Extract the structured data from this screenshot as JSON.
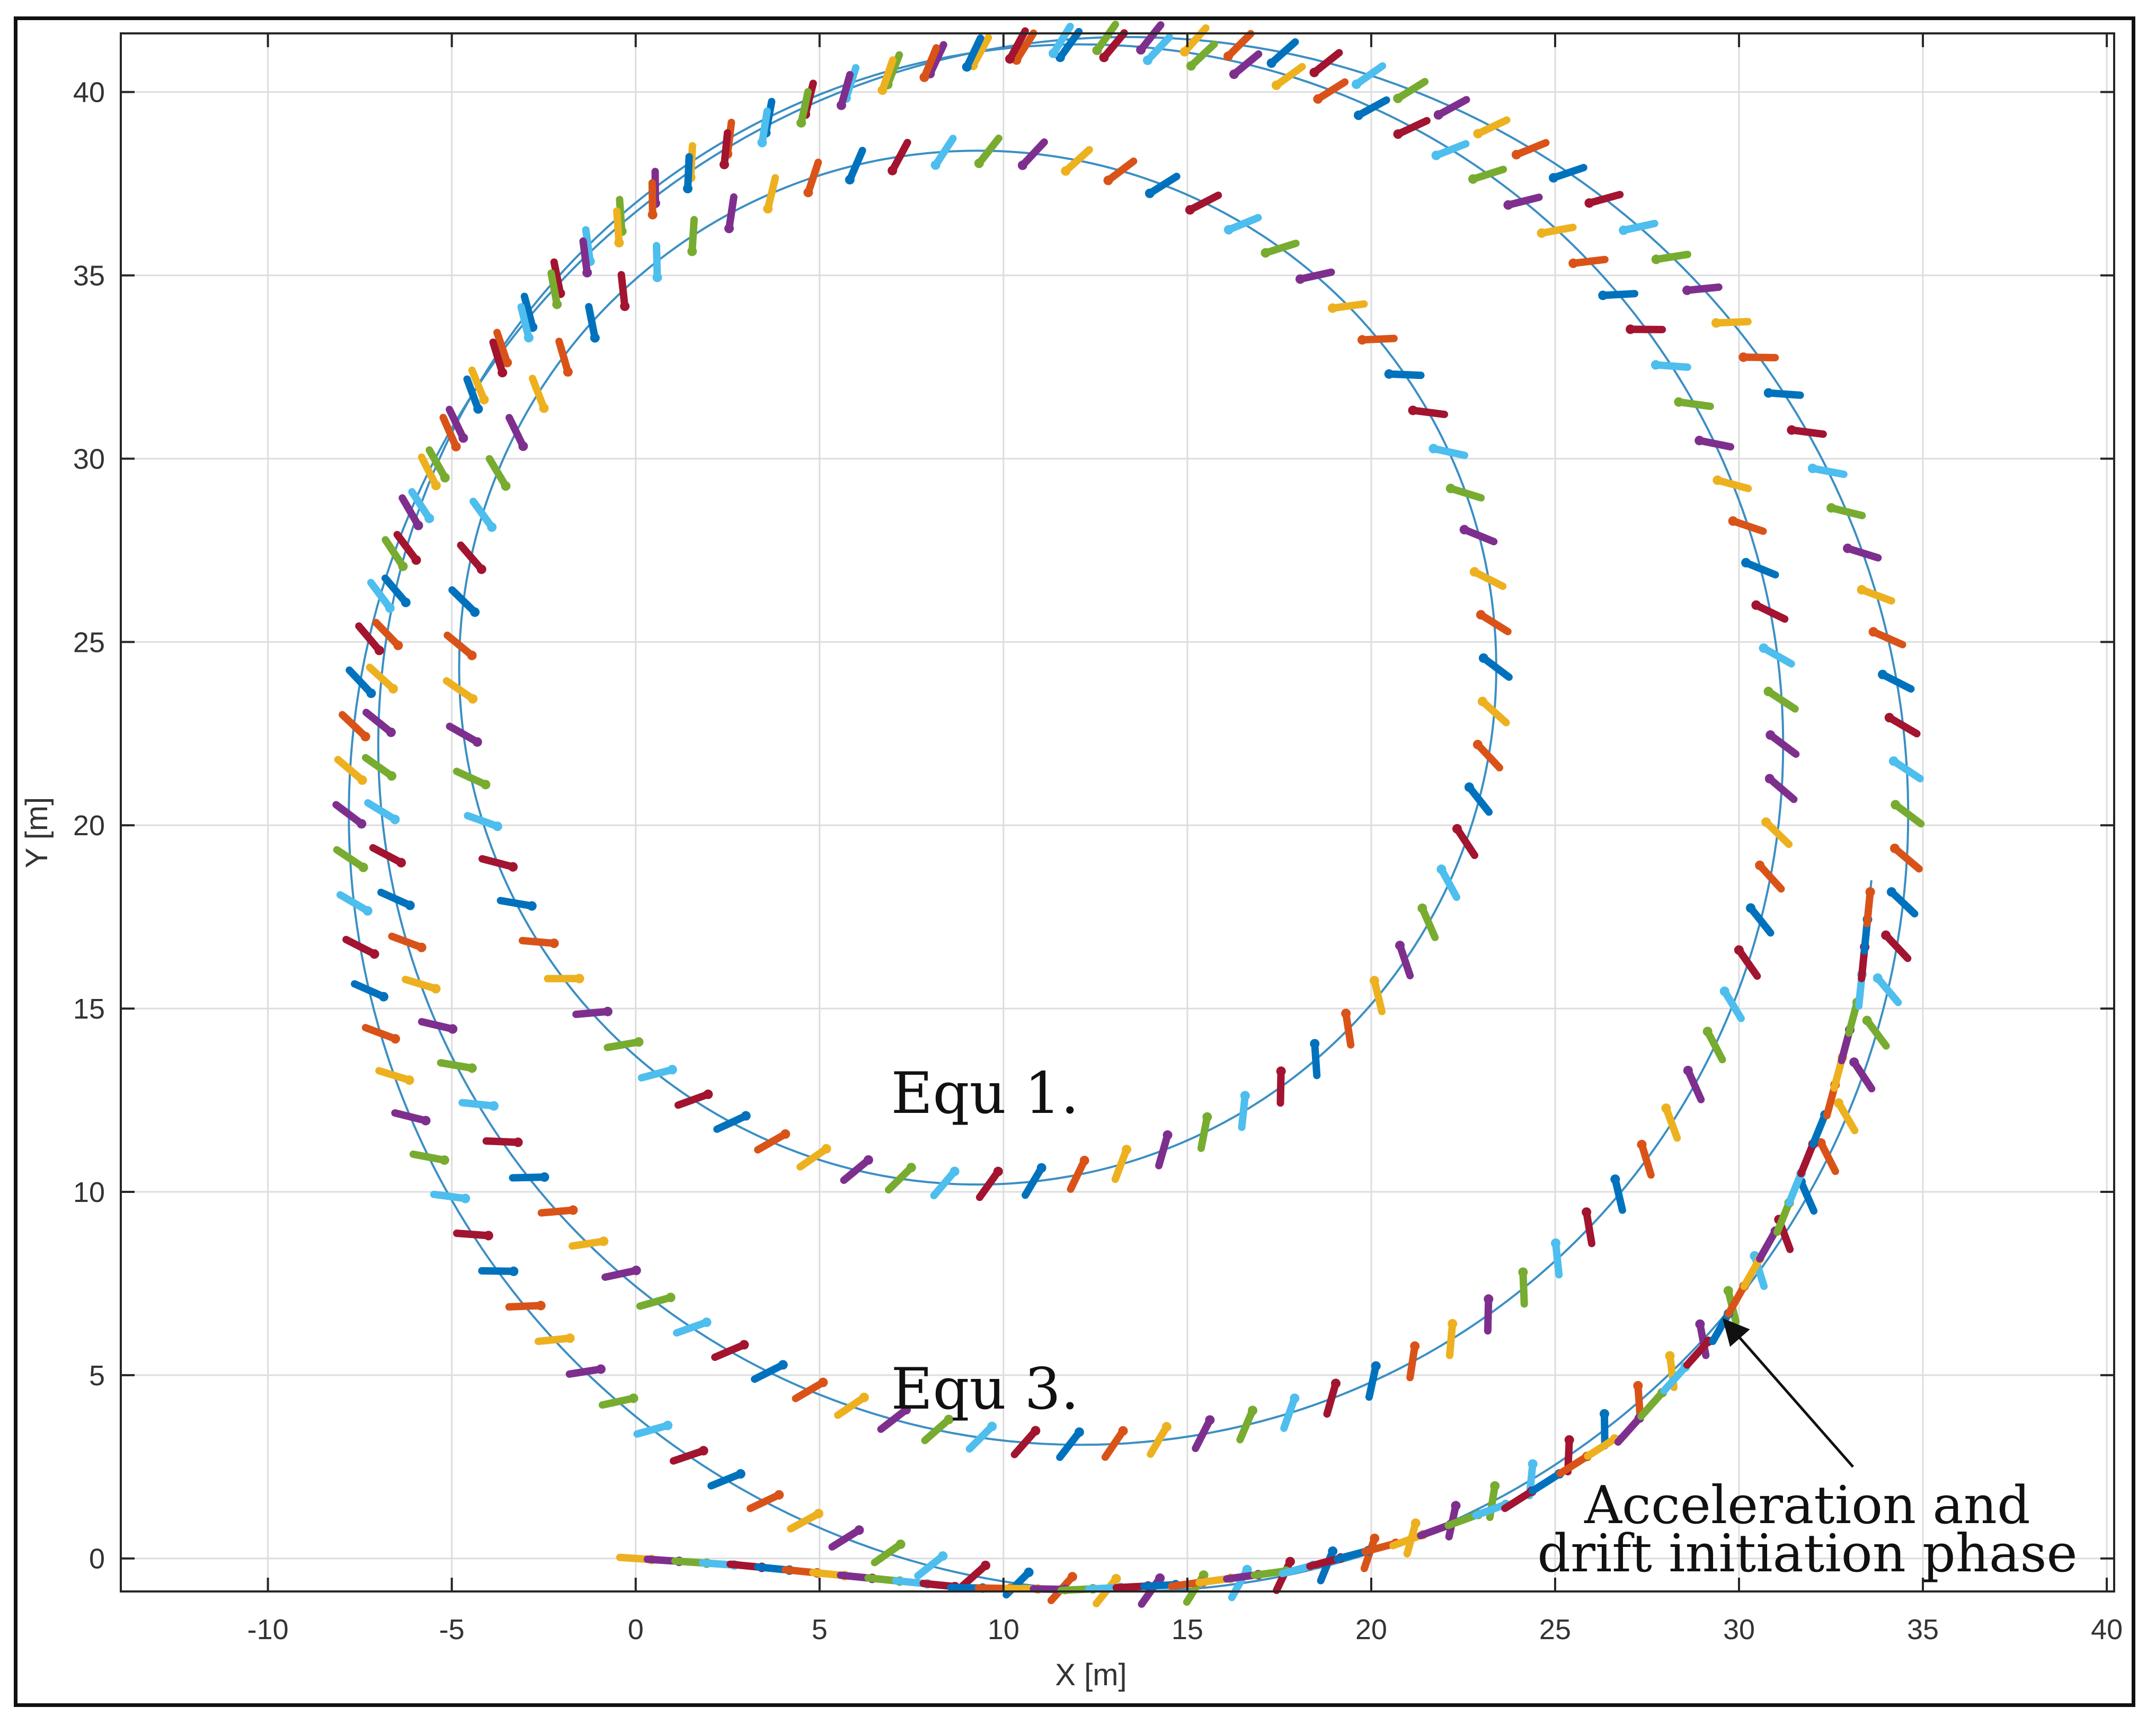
{
  "chart_data": {
    "type": "scatter",
    "title": "",
    "xlabel": "X [m]",
    "ylabel": "Y [m]",
    "xlim": [
      -14,
      40.2
    ],
    "ylim": [
      -0.9,
      41.6
    ],
    "xticks": [
      -10,
      -5,
      0,
      5,
      10,
      15,
      20,
      25,
      30,
      35,
      40
    ],
    "yticks": [
      0,
      5,
      10,
      15,
      20,
      25,
      30,
      35,
      40
    ],
    "grid": true,
    "legend": "none",
    "marker_colors": [
      "#0072BD",
      "#D95319",
      "#EDB120",
      "#7E2F8E",
      "#77AC30",
      "#4DBEEE",
      "#A2142F"
    ],
    "path_color": "#3B8FC4",
    "circles": [
      {
        "label": "Equ 1.",
        "center": [
          9.3,
          24.3
        ],
        "radius": 14.1
      },
      {
        "label": "Equ 3.",
        "center": [
          12.1,
          22.2
        ],
        "radius": 19.1
      },
      {
        "label": "",
        "center": [
          13.4,
          20.3
        ],
        "radius": 21.2
      }
    ],
    "entry_path": [
      [
        0,
        0
      ],
      [
        3,
        -0.2
      ],
      [
        6,
        -0.5
      ],
      [
        9,
        -0.8
      ],
      [
        12,
        -0.85
      ],
      [
        15,
        -0.7
      ],
      [
        18,
        -0.3
      ],
      [
        21,
        0.5
      ],
      [
        24,
        1.6
      ],
      [
        27,
        3.5
      ],
      [
        29.5,
        6.3
      ],
      [
        31.2,
        9.3
      ],
      [
        32.5,
        12.5
      ],
      [
        33.3,
        15.5
      ],
      [
        33.6,
        18.5
      ]
    ],
    "annotations": {
      "equ1": "Equ 1.",
      "equ3": "Equ 3.",
      "phase_line1": "Acceleration and",
      "phase_line2": "drift initiation phase"
    },
    "arrow": {
      "from": [
        33.1,
        2.5
      ],
      "to": [
        29.6,
        6.5
      ]
    }
  }
}
